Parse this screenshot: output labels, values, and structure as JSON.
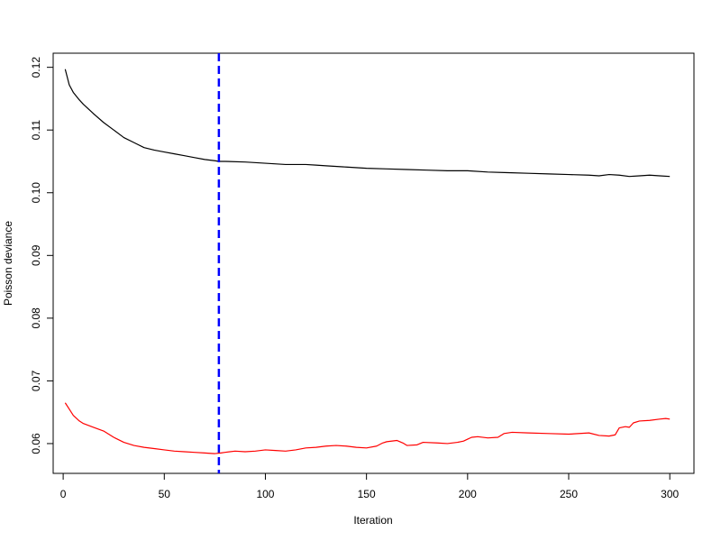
{
  "chart_data": {
    "type": "line",
    "title": "",
    "xlabel": "Iteration",
    "ylabel": "Poisson deviance",
    "xlim": [
      -4.95,
      311.95
    ],
    "ylim": [
      0.05525,
      0.12225
    ],
    "x_ticks": [
      0,
      50,
      100,
      150,
      200,
      250,
      300
    ],
    "y_ticks": [
      0.06,
      0.07,
      0.08,
      0.09,
      0.1,
      0.11,
      0.12
    ],
    "y_tick_labels": [
      "0.06",
      "0.07",
      "0.08",
      "0.09",
      "0.10",
      "0.11",
      "0.12"
    ],
    "grid": false,
    "legend": null,
    "series": [
      {
        "color": "#000000",
        "style": "solid",
        "points": [
          [
            1,
            0.1197
          ],
          [
            3,
            0.1172
          ],
          [
            5,
            0.116
          ],
          [
            8,
            0.1148
          ],
          [
            10,
            0.1141
          ],
          [
            15,
            0.1126
          ],
          [
            20,
            0.1112
          ],
          [
            25,
            0.11
          ],
          [
            30,
            0.1088
          ],
          [
            35,
            0.108
          ],
          [
            40,
            0.1072
          ],
          [
            45,
            0.1068
          ],
          [
            50,
            0.1065
          ],
          [
            55,
            0.1062
          ],
          [
            60,
            0.1059
          ],
          [
            65,
            0.1056
          ],
          [
            70,
            0.1053
          ],
          [
            75,
            0.1051
          ],
          [
            77,
            0.105
          ],
          [
            80,
            0.105
          ],
          [
            90,
            0.1049
          ],
          [
            100,
            0.1047
          ],
          [
            110,
            0.1045
          ],
          [
            120,
            0.1045
          ],
          [
            125,
            0.1044
          ],
          [
            130,
            0.1043
          ],
          [
            140,
            0.1041
          ],
          [
            150,
            0.1039
          ],
          [
            160,
            0.1038
          ],
          [
            170,
            0.1037
          ],
          [
            180,
            0.1036
          ],
          [
            190,
            0.1035
          ],
          [
            200,
            0.1035
          ],
          [
            210,
            0.1033
          ],
          [
            220,
            0.1032
          ],
          [
            230,
            0.1031
          ],
          [
            240,
            0.103
          ],
          [
            250,
            0.1029
          ],
          [
            260,
            0.1028
          ],
          [
            265,
            0.1027
          ],
          [
            270,
            0.1029
          ],
          [
            275,
            0.1028
          ],
          [
            280,
            0.1026
          ],
          [
            285,
            0.1027
          ],
          [
            290,
            0.1028
          ],
          [
            295,
            0.1027
          ],
          [
            300,
            0.1026
          ]
        ]
      },
      {
        "color": "#ff0000",
        "style": "solid",
        "points": [
          [
            1,
            0.0665
          ],
          [
            3,
            0.0655
          ],
          [
            5,
            0.0645
          ],
          [
            8,
            0.0636
          ],
          [
            10,
            0.0632
          ],
          [
            15,
            0.0626
          ],
          [
            20,
            0.062
          ],
          [
            25,
            0.061
          ],
          [
            30,
            0.0602
          ],
          [
            35,
            0.0597
          ],
          [
            40,
            0.0594
          ],
          [
            45,
            0.0592
          ],
          [
            50,
            0.059
          ],
          [
            55,
            0.0588
          ],
          [
            60,
            0.0587
          ],
          [
            65,
            0.0586
          ],
          [
            70,
            0.0585
          ],
          [
            75,
            0.0584
          ],
          [
            78,
            0.0585
          ],
          [
            80,
            0.0586
          ],
          [
            85,
            0.0588
          ],
          [
            90,
            0.0587
          ],
          [
            95,
            0.0588
          ],
          [
            100,
            0.059
          ],
          [
            105,
            0.0589
          ],
          [
            110,
            0.0588
          ],
          [
            115,
            0.059
          ],
          [
            120,
            0.0593
          ],
          [
            125,
            0.0594
          ],
          [
            130,
            0.0596
          ],
          [
            135,
            0.0597
          ],
          [
            140,
            0.0596
          ],
          [
            145,
            0.0594
          ],
          [
            150,
            0.0593
          ],
          [
            155,
            0.0596
          ],
          [
            158,
            0.0601
          ],
          [
            160,
            0.0603
          ],
          [
            165,
            0.0605
          ],
          [
            168,
            0.0601
          ],
          [
            170,
            0.0597
          ],
          [
            175,
            0.0598
          ],
          [
            178,
            0.0602
          ],
          [
            185,
            0.0601
          ],
          [
            190,
            0.06
          ],
          [
            195,
            0.0602
          ],
          [
            198,
            0.0604
          ],
          [
            200,
            0.0607
          ],
          [
            202,
            0.061
          ],
          [
            205,
            0.0611
          ],
          [
            210,
            0.0609
          ],
          [
            215,
            0.061
          ],
          [
            218,
            0.0616
          ],
          [
            222,
            0.0618
          ],
          [
            230,
            0.0617
          ],
          [
            240,
            0.0616
          ],
          [
            250,
            0.0615
          ],
          [
            260,
            0.0617
          ],
          [
            265,
            0.0613
          ],
          [
            270,
            0.0612
          ],
          [
            273,
            0.0614
          ],
          [
            275,
            0.0625
          ],
          [
            278,
            0.0627
          ],
          [
            280,
            0.0626
          ],
          [
            282,
            0.0633
          ],
          [
            285,
            0.0636
          ],
          [
            290,
            0.0637
          ],
          [
            295,
            0.0639
          ],
          [
            298,
            0.064
          ],
          [
            300,
            0.0639
          ]
        ]
      }
    ],
    "annotations": [
      {
        "type": "vline",
        "x": 77,
        "color": "#0000ff",
        "style": "dashed"
      }
    ]
  }
}
